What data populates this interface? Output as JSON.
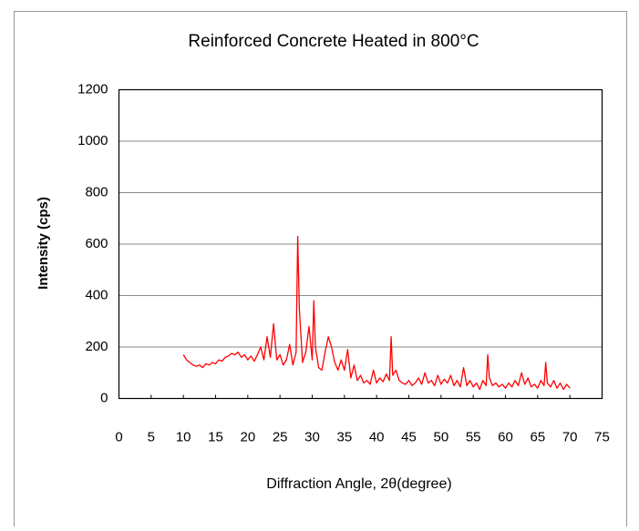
{
  "chart_data": {
    "type": "line",
    "title": "Reinforced Concrete Heated in 800°C",
    "x_label": "Diffraction Angle, 2θ(degree)",
    "y_label": "Intensity (cps)",
    "xlim": [
      0,
      75
    ],
    "xticks": [
      0,
      5,
      10,
      15,
      20,
      25,
      30,
      35,
      40,
      45,
      50,
      55,
      60,
      65,
      70,
      75
    ],
    "ylim": [
      0,
      1200
    ],
    "yticks": [
      0,
      200,
      400,
      600,
      800,
      1000,
      1200
    ],
    "grid": true,
    "x": [
      10,
      10.5,
      11,
      11.5,
      12,
      12.5,
      13,
      13.5,
      14,
      14.5,
      15,
      15.5,
      16,
      16.5,
      17,
      17.5,
      18,
      18.5,
      19,
      19.5,
      20,
      20.5,
      21,
      21.5,
      22,
      22.5,
      23,
      23.5,
      24,
      24.5,
      25,
      25.5,
      26,
      26.5,
      27,
      27.5,
      27.75,
      28,
      28.5,
      29,
      29.5,
      30,
      30.25,
      30.5,
      31,
      31.5,
      32,
      32.5,
      33,
      33.5,
      34,
      34.5,
      35,
      35.5,
      36,
      36.5,
      37,
      37.5,
      38,
      38.5,
      39,
      39.5,
      40,
      40.5,
      41,
      41.5,
      42,
      42.25,
      42.5,
      43,
      43.5,
      44,
      44.5,
      45,
      45.5,
      46,
      46.5,
      47,
      47.5,
      48,
      48.5,
      49,
      49.5,
      50,
      50.5,
      51,
      51.5,
      52,
      52.5,
      53,
      53.5,
      54,
      54.5,
      55,
      55.5,
      56,
      56.5,
      57,
      57.25,
      57.5,
      58,
      58.5,
      59,
      59.5,
      60,
      60.5,
      61,
      61.5,
      62,
      62.5,
      63,
      63.5,
      64,
      64.5,
      65,
      65.5,
      66,
      66.25,
      66.5,
      67,
      67.5,
      68,
      68.5,
      69,
      69.5,
      70
    ],
    "series": [
      {
        "color": "#ff0000",
        "values": [
          170,
          150,
          140,
          130,
          125,
          130,
          120,
          135,
          130,
          140,
          135,
          150,
          145,
          160,
          165,
          175,
          170,
          180,
          160,
          170,
          150,
          165,
          145,
          170,
          200,
          150,
          240,
          160,
          290,
          150,
          170,
          130,
          150,
          210,
          130,
          180,
          630,
          350,
          140,
          180,
          280,
          150,
          380,
          200,
          120,
          110,
          180,
          240,
          200,
          140,
          110,
          150,
          110,
          190,
          80,
          130,
          70,
          90,
          60,
          70,
          55,
          110,
          60,
          80,
          65,
          95,
          70,
          240,
          90,
          110,
          70,
          60,
          55,
          70,
          50,
          60,
          80,
          55,
          100,
          60,
          70,
          50,
          90,
          55,
          75,
          60,
          90,
          50,
          70,
          45,
          120,
          50,
          70,
          45,
          60,
          35,
          70,
          50,
          170,
          80,
          50,
          60,
          45,
          55,
          40,
          60,
          45,
          70,
          50,
          100,
          55,
          80,
          45,
          55,
          40,
          70,
          50,
          140,
          60,
          45,
          70,
          40,
          60,
          35,
          55,
          40
        ]
      }
    ]
  }
}
